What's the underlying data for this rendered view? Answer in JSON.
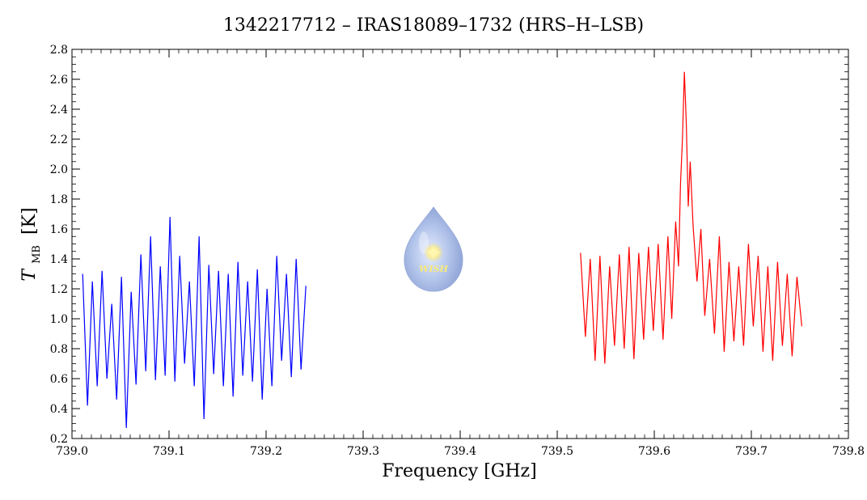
{
  "chart_data": {
    "type": "line",
    "title": "1342217712 – IRAS18089–1732 (HRS–H–LSB)",
    "xlabel": "Frequency [GHz]",
    "ylabel_main": "T",
    "ylabel_sub": "MB",
    "ylabel_unit": "[K]",
    "xlim": [
      739.0,
      739.8
    ],
    "ylim": [
      0.2,
      2.8
    ],
    "x_ticks": [
      "739.0",
      "739.1",
      "739.2",
      "739.3",
      "739.4",
      "739.5",
      "739.6",
      "739.7",
      "739.8"
    ],
    "y_ticks": [
      "0.2",
      "0.4",
      "0.6",
      "0.8",
      "1.0",
      "1.2",
      "1.4",
      "1.6",
      "1.8",
      "2.0",
      "2.2",
      "2.4",
      "2.6",
      "2.8"
    ],
    "grid": false,
    "logo_text": "WISH",
    "series": [
      {
        "color": "#0000ff",
        "x": [
          739.011,
          739.016,
          739.021,
          739.026,
          739.031,
          739.036,
          739.041,
          739.046,
          739.051,
          739.056,
          739.061,
          739.066,
          739.071,
          739.076,
          739.081,
          739.086,
          739.091,
          739.096,
          739.101,
          739.106,
          739.111,
          739.116,
          739.121,
          739.126,
          739.131,
          739.136,
          739.141,
          739.146,
          739.151,
          739.156,
          739.161,
          739.166,
          739.171,
          739.176,
          739.181,
          739.186,
          739.191,
          739.196,
          739.201,
          739.206,
          739.211,
          739.216,
          739.221,
          739.226,
          739.231,
          739.236,
          739.241
        ],
        "y": [
          1.3,
          0.42,
          1.25,
          0.55,
          1.32,
          0.6,
          1.1,
          0.46,
          1.28,
          0.27,
          1.18,
          0.56,
          1.43,
          0.65,
          1.55,
          0.59,
          1.35,
          0.62,
          1.68,
          0.58,
          1.42,
          0.7,
          1.25,
          0.55,
          1.55,
          0.33,
          1.36,
          0.63,
          1.32,
          0.55,
          1.3,
          0.48,
          1.38,
          0.62,
          1.25,
          0.58,
          1.33,
          0.46,
          1.2,
          0.55,
          1.42,
          0.72,
          1.3,
          0.61,
          1.4,
          0.66,
          1.22
        ]
      },
      {
        "color": "#ff0000",
        "x": [
          739.524,
          739.529,
          739.534,
          739.539,
          739.544,
          739.549,
          739.554,
          739.559,
          739.564,
          739.569,
          739.574,
          739.579,
          739.584,
          739.589,
          739.594,
          739.599,
          739.604,
          739.609,
          739.614,
          739.618,
          739.622,
          739.625,
          739.627,
          739.629,
          739.631,
          739.633,
          739.635,
          739.637,
          739.64,
          739.644,
          739.648,
          739.652,
          739.657,
          739.662,
          739.667,
          739.672,
          739.677,
          739.682,
          739.687,
          739.692,
          739.697,
          739.702,
          739.707,
          739.712,
          739.717,
          739.722,
          739.727,
          739.732,
          739.737,
          739.742,
          739.747,
          739.752
        ],
        "y": [
          1.44,
          0.88,
          1.4,
          0.72,
          1.42,
          0.7,
          1.35,
          0.82,
          1.43,
          0.8,
          1.48,
          0.73,
          1.44,
          0.86,
          1.48,
          0.92,
          1.5,
          0.86,
          1.55,
          1.0,
          1.65,
          1.35,
          1.9,
          2.2,
          2.65,
          2.3,
          1.75,
          2.05,
          1.62,
          1.25,
          1.6,
          1.02,
          1.4,
          0.9,
          1.55,
          0.78,
          1.38,
          0.85,
          1.35,
          0.82,
          1.5,
          0.95,
          1.42,
          0.78,
          1.35,
          0.72,
          1.38,
          0.82,
          1.3,
          0.75,
          1.28,
          0.95
        ]
      }
    ]
  }
}
